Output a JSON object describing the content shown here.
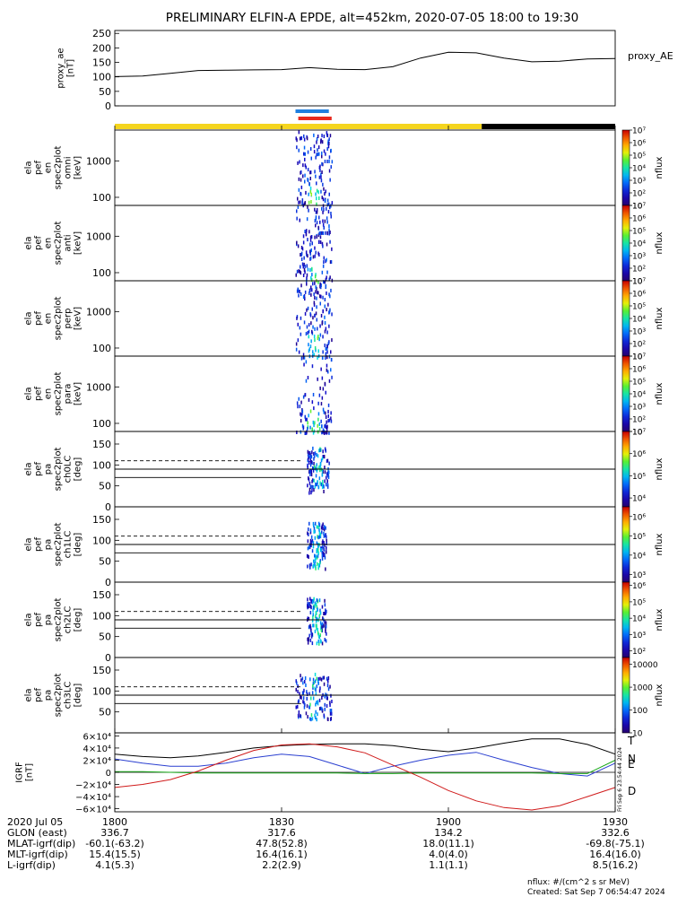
{
  "title": "PRELIMINARY ELFIN-A EPDE, alt=452km, 2020-07-05 18:00 to 19:30",
  "colors": {
    "sunlight": "#f5d51e",
    "shadow": "#000000",
    "science_blue": "#1f7fe0",
    "science_red": "#e8281e",
    "trace_blue": "#2a3fd0",
    "trace_red": "#d01a1a",
    "trace_green": "#18a818"
  },
  "chart_data": [
    {
      "type": "line",
      "panel": "proxy_ae",
      "ylabel_lines": [
        "proxy_ae",
        "[nT]"
      ],
      "legend": "proxy_AE",
      "ylim": [
        0,
        260
      ],
      "yticks": [
        "0",
        "50",
        "100",
        "150",
        "200",
        "250"
      ],
      "ytick_values": [
        0,
        50,
        100,
        150,
        200,
        250
      ],
      "x_minutes": [
        0,
        5,
        10,
        15,
        20,
        25,
        30,
        35,
        40,
        45,
        50,
        55,
        60,
        65,
        70,
        75,
        80,
        85,
        90
      ],
      "values": [
        101,
        103,
        112,
        122,
        123,
        124,
        125,
        132,
        126,
        125,
        135,
        165,
        185,
        183,
        165,
        152,
        154,
        162,
        163
      ]
    },
    {
      "type": "bar",
      "panel": "orbit_bars",
      "segments": [
        {
          "state": "sunlight",
          "from_min": 0,
          "to_min": 66
        },
        {
          "state": "shadow",
          "from_min": 66,
          "to_min": 90
        }
      ],
      "science_zones": [
        {
          "color": "blue",
          "from_min": 32.5,
          "to_min": 38.5
        },
        {
          "color": "red",
          "from_min": 33.0,
          "to_min": 39.0
        }
      ]
    },
    {
      "type": "heatmap",
      "panel": "spectrogram",
      "ylabel_lines": [
        "ela",
        "pef",
        "en",
        "spec2plot",
        "omni",
        "[keV]"
      ],
      "yscale": "log",
      "ylim": [
        60,
        7000
      ],
      "yticks": [
        "100",
        "1000"
      ],
      "ytick_values": [
        100,
        1000
      ],
      "colorbar_label": "nflux",
      "colorbar_ticks": [
        "10",
        "10²",
        "10³",
        "10⁴",
        "10⁵",
        "10⁶",
        "10⁷"
      ],
      "colorbar_range": [
        1,
        7
      ],
      "active_minutes": [
        32.5,
        39.0
      ]
    },
    {
      "type": "heatmap",
      "panel": "spectrogram",
      "ylabel_lines": [
        "ela",
        "pef",
        "en",
        "spec2plot",
        "anti",
        "[keV]"
      ],
      "yscale": "log",
      "ylim": [
        60,
        7000
      ],
      "yticks": [
        "100",
        "1000"
      ],
      "ytick_values": [
        100,
        1000
      ],
      "colorbar_label": "nflux",
      "colorbar_ticks": [
        "10",
        "10²",
        "10³",
        "10⁴",
        "10⁵",
        "10⁶",
        "10⁷"
      ],
      "colorbar_range": [
        1,
        7
      ],
      "active_minutes": [
        32.5,
        39.0
      ]
    },
    {
      "type": "heatmap",
      "panel": "spectrogram",
      "ylabel_lines": [
        "ela",
        "pef",
        "en",
        "spec2plot",
        "perp",
        "[keV]"
      ],
      "yscale": "log",
      "ylim": [
        60,
        7000
      ],
      "yticks": [
        "100",
        "1000"
      ],
      "ytick_values": [
        100,
        1000
      ],
      "colorbar_label": "nflux",
      "colorbar_ticks": [
        "10",
        "10²",
        "10³",
        "10⁴",
        "10⁵",
        "10⁶",
        "10⁷"
      ],
      "colorbar_range": [
        1,
        7
      ],
      "active_minutes": [
        32.5,
        39.0
      ]
    },
    {
      "type": "heatmap",
      "panel": "spectrogram",
      "ylabel_lines": [
        "ela",
        "pef",
        "en",
        "spec2plot",
        "para",
        "[keV]"
      ],
      "yscale": "log",
      "ylim": [
        60,
        7000
      ],
      "yticks": [
        "100",
        "1000"
      ],
      "ytick_values": [
        100,
        1000
      ],
      "colorbar_label": "nflux",
      "colorbar_ticks": [
        "10",
        "10²",
        "10³",
        "10⁴",
        "10⁵",
        "10⁶",
        "10⁷"
      ],
      "colorbar_range": [
        1,
        7
      ],
      "active_minutes": [
        32.5,
        39.0
      ]
    },
    {
      "type": "heatmap",
      "panel": "pitch",
      "ylabel_lines": [
        "ela",
        "pef",
        "pa",
        "spec2plot",
        "ch0LC",
        "[deg]"
      ],
      "ylim": [
        0,
        180
      ],
      "yticks": [
        "0",
        "50",
        "100",
        "150"
      ],
      "ytick_values": [
        0,
        50,
        100,
        150
      ],
      "solid_line": 90,
      "lc_dashed": 110,
      "lc_solid": 70,
      "colorbar_label": "nflux",
      "colorbar_ticks": [
        "10⁴",
        "10⁵",
        "10⁶",
        "10⁷"
      ],
      "colorbar_range": [
        3.6,
        7
      ],
      "active_minutes": [
        34.5,
        38.5
      ]
    },
    {
      "type": "heatmap",
      "panel": "pitch",
      "ylabel_lines": [
        "ela",
        "pef",
        "pa",
        "spec2plot",
        "ch1LC",
        "[deg]"
      ],
      "ylim": [
        0,
        180
      ],
      "yticks": [
        "0",
        "50",
        "100",
        "150"
      ],
      "ytick_values": [
        0,
        50,
        100,
        150
      ],
      "solid_line": 90,
      "lc_dashed": 110,
      "lc_solid": 70,
      "colorbar_label": "nflux",
      "colorbar_ticks": [
        "10³",
        "10⁴",
        "10⁵",
        "10⁶"
      ],
      "colorbar_range": [
        2.6,
        6.5
      ],
      "active_minutes": [
        34.5,
        38.0
      ]
    },
    {
      "type": "heatmap",
      "panel": "pitch",
      "ylabel_lines": [
        "ela",
        "pef",
        "pa",
        "spec2plot",
        "ch2LC",
        "[deg]"
      ],
      "ylim": [
        0,
        180
      ],
      "yticks": [
        "0",
        "50",
        "100",
        "150"
      ],
      "ytick_values": [
        0,
        50,
        100,
        150
      ],
      "solid_line": 90,
      "lc_dashed": 110,
      "lc_solid": 70,
      "colorbar_label": "nflux",
      "colorbar_ticks": [
        "10²",
        "10³",
        "10⁴",
        "10⁵",
        "10⁶"
      ],
      "colorbar_range": [
        1.6,
        6.2
      ],
      "active_minutes": [
        34.5,
        38.0
      ]
    },
    {
      "type": "heatmap",
      "panel": "pitch",
      "ylabel_lines": [
        "ela",
        "pef",
        "pa",
        "spec2plot",
        "ch3LC",
        "[deg]"
      ],
      "ylim": [
        0,
        180
      ],
      "yticks": [
        "50",
        "100",
        "150"
      ],
      "ytick_values": [
        50,
        100,
        150
      ],
      "solid_line": 90,
      "lc_dashed": 110,
      "lc_solid": 70,
      "colorbar_label": "nflux",
      "colorbar_ticks": [
        "10",
        "100",
        "1000",
        "10000"
      ],
      "colorbar_range": [
        1,
        4.3
      ],
      "active_minutes": [
        32.5,
        39.0
      ]
    },
    {
      "type": "line",
      "panel": "igrf",
      "ylabel_lines": [
        "IGRF",
        "[nT]"
      ],
      "ylim": [
        -65000,
        65000
      ],
      "yticks": [
        "6×10⁴",
        "4×10⁴",
        "2×10⁴",
        "0",
        "−2×10⁴",
        "−4×10⁴",
        "−6×10⁴"
      ],
      "ytick_values": [
        60000,
        40000,
        20000,
        0,
        -20000,
        -40000,
        -60000
      ],
      "x_minutes": [
        0,
        5,
        10,
        15,
        20,
        25,
        30,
        35,
        40,
        45,
        50,
        55,
        60,
        65,
        70,
        75,
        80,
        85,
        90
      ],
      "series": [
        {
          "name": "T",
          "color": "#000000",
          "values": [
            30000,
            26000,
            24000,
            27000,
            33000,
            40000,
            44000,
            46000,
            47000,
            47000,
            44000,
            38000,
            34000,
            40000,
            48000,
            55000,
            55000,
            46000,
            30000
          ]
        },
        {
          "name": "N",
          "color": "#2a3fd0",
          "values": [
            22000,
            15000,
            10000,
            10000,
            15000,
            24000,
            30000,
            26000,
            12000,
            -2000,
            10000,
            20000,
            28000,
            33000,
            20000,
            8000,
            -2000,
            -6000,
            15000
          ]
        },
        {
          "name": "E",
          "color": "#18a818",
          "values": [
            1000,
            1000,
            0,
            -1000,
            -1000,
            -1000,
            -1000,
            -1000,
            -1000,
            -2000,
            -2000,
            -1000,
            -1000,
            -1000,
            -1000,
            -1000,
            -2000,
            -2000,
            20000
          ]
        },
        {
          "name": "D",
          "color": "#d01a1a",
          "values": [
            -25000,
            -20000,
            -12000,
            2000,
            20000,
            36000,
            45000,
            47000,
            42000,
            32000,
            12000,
            -8000,
            -30000,
            -47000,
            -58000,
            -62000,
            -55000,
            -40000,
            -25000
          ]
        }
      ]
    }
  ],
  "xaxis": {
    "tick_minutes": [
      0,
      30,
      60,
      90
    ],
    "rows": [
      {
        "label": "2020 Jul 05",
        "values": [
          "1800",
          "1830",
          "1900",
          "1930"
        ]
      },
      {
        "label": "GLON (east)",
        "values": [
          "336.7",
          "317.6",
          "134.2",
          "332.6"
        ]
      },
      {
        "label": "MLAT-igrf(dip)",
        "values": [
          "-60.1(-63.2)",
          "47.8(52.8)",
          "18.0(11.1)",
          "-69.8(-75.1)"
        ]
      },
      {
        "label": "MLT-igrf(dip)",
        "values": [
          "15.4(15.5)",
          "16.4(16.1)",
          "4.0(4.0)",
          "16.4(16.0)"
        ]
      },
      {
        "label": "L-igrf(dip)",
        "values": [
          "4.1(5.3)",
          "2.2(2.9)",
          "1.1(1.1)",
          "8.5(16.2)"
        ]
      }
    ]
  },
  "footer": {
    "units": "nflux: #/(cm^2 s sr MeV)",
    "created": "Created: Sat Sep  7 06:54:47 2024",
    "side_stamp": "Fri Sep  6 23:54:44 2024"
  }
}
